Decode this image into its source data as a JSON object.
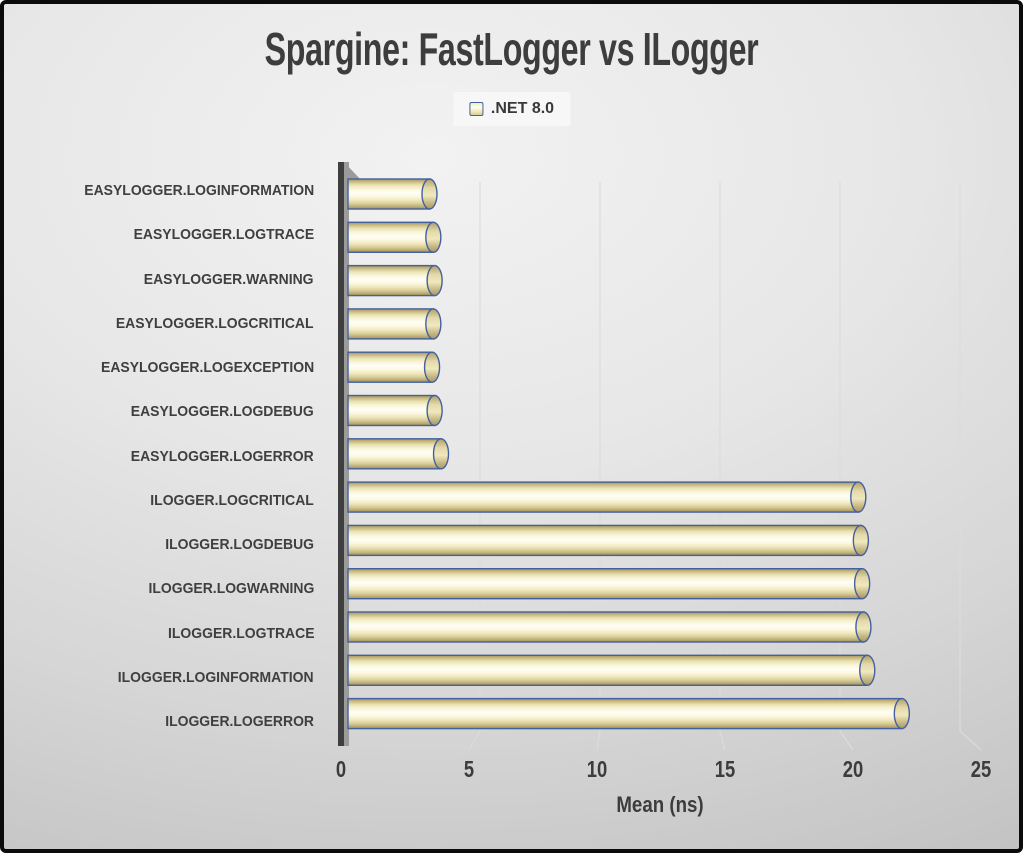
{
  "chart_data": {
    "type": "bar",
    "orientation": "horizontal",
    "style": "3d-cylinder",
    "title": "Spargine: FastLogger vs ILogger",
    "xlabel": "Mean (ns)",
    "ylabel": "",
    "xlim": [
      0,
      25
    ],
    "xticks": [
      0,
      5,
      10,
      15,
      20,
      25
    ],
    "grid": true,
    "legend_position": "top-center",
    "categories": [
      "EASYLOGGER.LOGINFORMATION",
      "EASYLOGGER.LOGTRACE",
      "EASYLOGGER.WARNING",
      "EASYLOGGER.LOGCRITICAL",
      "EASYLOGGER.LOGEXCEPTION",
      "EASYLOGGER.LOGDEBUG",
      "EASYLOGGER.LOGERROR",
      "ILOGGER.LOGCRITICAL",
      "ILOGGER.LOGDEBUG",
      "ILOGGER.LOGWARNING",
      "ILOGGER.LOGTRACE",
      "ILOGGER.LOGINFORMATION",
      "ILOGGER.LOGERROR"
    ],
    "series": [
      {
        "name": ".NET 8.0",
        "values": [
          3.75,
          3.9,
          3.95,
          3.9,
          3.85,
          3.95,
          4.2,
          20.5,
          20.6,
          20.65,
          20.7,
          20.85,
          22.2
        ]
      }
    ],
    "colors": {
      "bar_fill_highlight": "#fffef6",
      "bar_fill_shade": "#a2925c",
      "bar_border": "#44609f",
      "text": "#3d3d3d",
      "wall_front": "#3f3f3f",
      "wall_side": "#9b9b9b",
      "gridline": "#dcdcdc",
      "legend_bg": "#f9f9f9"
    }
  }
}
